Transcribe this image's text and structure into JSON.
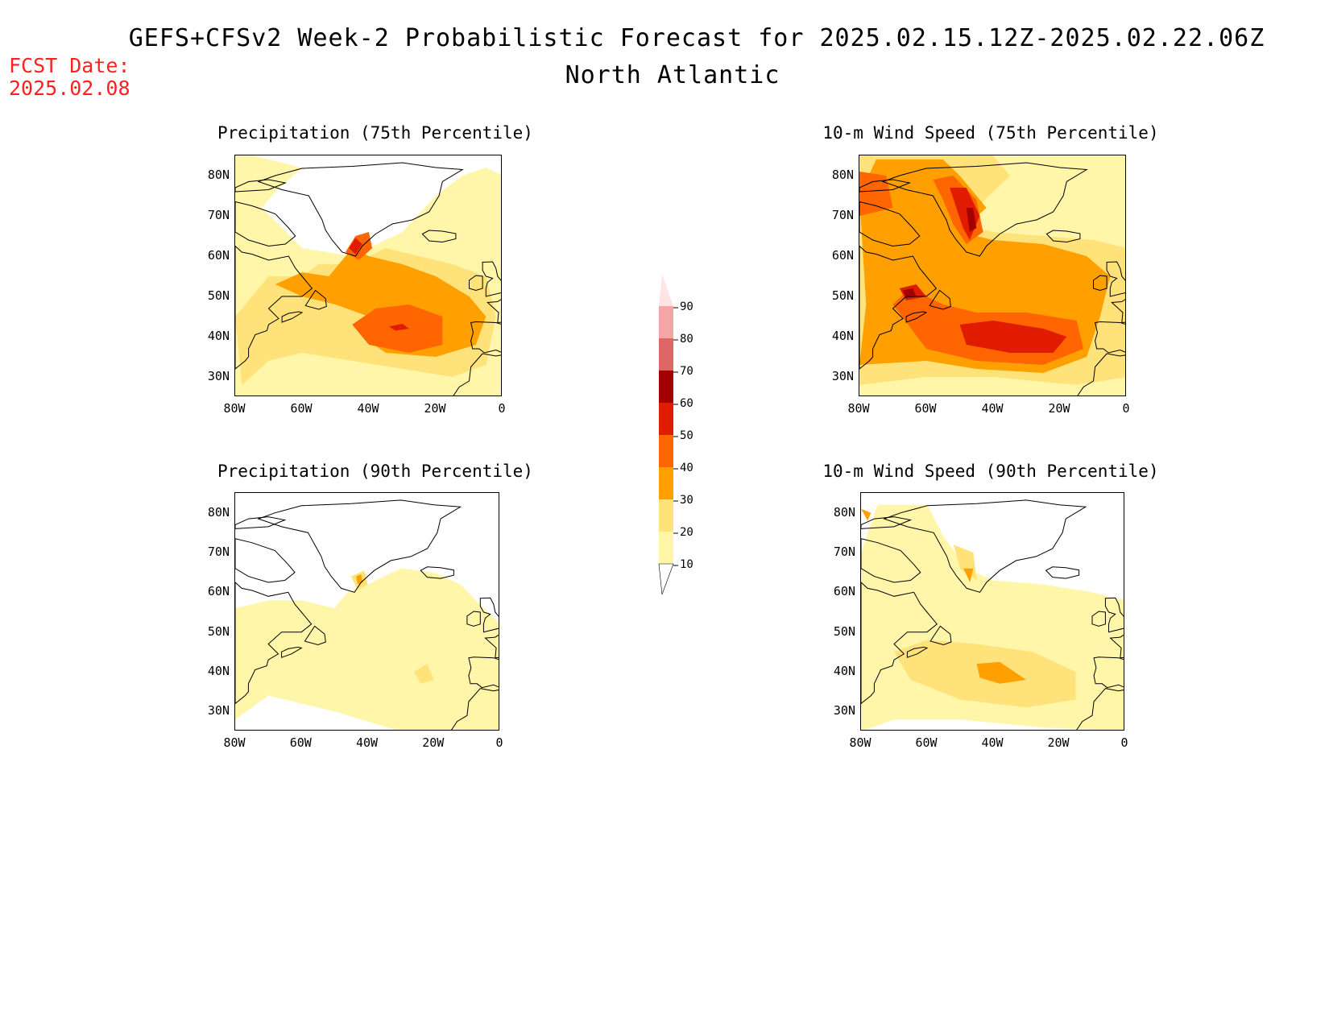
{
  "title": "GEFS+CFSv2 Week-2 Probabilistic Forecast for 2025.02.15.12Z-2025.02.22.06Z",
  "subtitle": "North Atlantic",
  "fcst_date": {
    "label": "FCST Date:",
    "value": "2025.02.08"
  },
  "colors": {
    "levels": [
      10,
      20,
      30,
      40,
      50,
      60,
      70,
      80,
      90
    ],
    "fills": [
      "#fff6aa",
      "#ffe37a",
      "#ffa000",
      "#ff6500",
      "#e11b00",
      "#a50000",
      "#dd6666",
      "#f4a5a5",
      "#fde5e5"
    ]
  },
  "axes": {
    "lat_labels": [
      "80N",
      "70N",
      "60N",
      "50N",
      "40N",
      "30N"
    ],
    "lon_labels": [
      "80W",
      "60W",
      "40W",
      "20W",
      "0"
    ]
  },
  "panels": [
    {
      "id": "precip75",
      "title": "Precipitation (75th Percentile)",
      "variable": "precipitation",
      "percentile": 75,
      "field_level": "high-precip"
    },
    {
      "id": "wind75",
      "title": "10-m Wind Speed (75th Percentile)",
      "variable": "wind",
      "percentile": 75,
      "field_level": "high-wind"
    },
    {
      "id": "precip90",
      "title": "Precipitation (90th Percentile)",
      "variable": "precipitation",
      "percentile": 90,
      "field_level": "low-precip"
    },
    {
      "id": "wind90",
      "title": "10-m Wind Speed (90th Percentile)",
      "variable": "wind",
      "percentile": 90,
      "field_level": "low-wind"
    }
  ],
  "colorbar": {
    "labels": [
      "90",
      "80",
      "70",
      "60",
      "50",
      "40",
      "30",
      "20",
      "10"
    ]
  }
}
